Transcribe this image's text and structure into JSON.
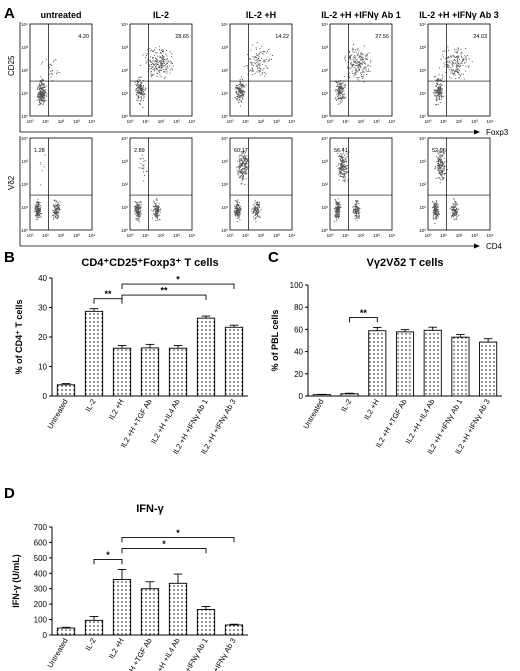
{
  "panel_letters": [
    "A",
    "B",
    "C",
    "D"
  ],
  "flow": {
    "conditions": [
      "untreated",
      "IL-2",
      "IL-2 +H",
      "IL-2 +H +IFNγ Ab 1",
      "IL-2 +H +IFNγ Ab 3"
    ],
    "row1": {
      "y_axis": "CD25",
      "x_axis": "Foxp3",
      "percents": [
        "4.20",
        "28.65",
        "14.22",
        "27.56",
        "24.03"
      ]
    },
    "row2": {
      "y_axis": "Vδ2",
      "x_axis": "CD4",
      "percents": [
        "1.28",
        "2.89",
        "60.17",
        "56.41",
        "52.06"
      ]
    },
    "tick_labels": [
      "10⁰",
      "10¹",
      "10²",
      "10³",
      "10⁴"
    ]
  },
  "chart_data": [
    {
      "id": "B",
      "type": "bar",
      "title": "CD4⁺CD25⁺Foxp3⁺ T cells",
      "ylabel": "% of CD4⁺ T cells",
      "ylim": [
        0,
        40
      ],
      "yticks": [
        0,
        10,
        20,
        30,
        40
      ],
      "categories": [
        "Untreated",
        "IL-2",
        "IL2 +H",
        "IL2 +H +TGF Ab",
        "IL2 +H +IL4 Ab",
        "IL2 +H +IFNγ Ab 1",
        "IL2 +H +IFNγ Ab 3"
      ],
      "values": [
        3.8,
        28.7,
        16.2,
        16.3,
        16.2,
        26.4,
        23.3
      ],
      "errors": [
        0.4,
        0.9,
        0.9,
        1.2,
        0.9,
        0.7,
        0.7
      ],
      "significance": [
        {
          "from": 1,
          "to": 2,
          "label": "**"
        },
        {
          "from": 2,
          "to": 5,
          "label": "**"
        },
        {
          "from": 2,
          "to": 6,
          "label": "*"
        }
      ]
    },
    {
      "id": "C",
      "type": "bar",
      "title": "Vγ2Vδ2 T cells",
      "ylabel": "% of PBL cells",
      "ylim": [
        0,
        100
      ],
      "yticks": [
        0,
        20,
        40,
        60,
        80,
        100
      ],
      "categories": [
        "Untreated",
        "IL-2",
        "IL2 +H",
        "IL2 +H +TGF Ab",
        "IL2 +H +IL4 Ab",
        "IL2 +H +IFNγ Ab 1",
        "IL2 +H +IFNγ Ab 3"
      ],
      "values": [
        1.2,
        2.0,
        58.8,
        57.8,
        59.2,
        53.0,
        48.6
      ],
      "errors": [
        0.3,
        0.5,
        3.0,
        2.0,
        2.8,
        2.5,
        3.0
      ],
      "significance": [
        {
          "from": 1,
          "to": 2,
          "label": "**"
        }
      ]
    },
    {
      "id": "D",
      "type": "bar",
      "title": "IFN-γ",
      "ylabel": "IFN-γ (U/mL)",
      "ylim": [
        0,
        700
      ],
      "yticks": [
        0,
        100,
        200,
        300,
        400,
        500,
        600,
        700
      ],
      "categories": [
        "Untreated",
        "IL-2",
        "IL2 +H",
        "IL2 +H +TGF Ab",
        "IL2 +H +IL4 Ab",
        "IL2 +H +IFNγ Ab 1",
        "IL2 +H +IFNγ Ab 3"
      ],
      "values": [
        45,
        95,
        360,
        300,
        335,
        165,
        65
      ],
      "errors": [
        5,
        25,
        65,
        45,
        60,
        20,
        5
      ],
      "significance": [
        {
          "from": 1,
          "to": 2,
          "label": "*"
        },
        {
          "from": 2,
          "to": 5,
          "label": "*"
        },
        {
          "from": 2,
          "to": 6,
          "label": "*"
        }
      ]
    }
  ]
}
